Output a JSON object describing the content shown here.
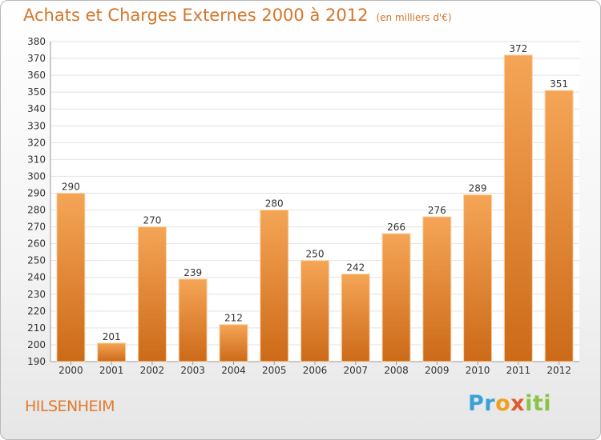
{
  "title": {
    "main": "Achats et Charges Externes 2000 à 2012",
    "unit": "(en milliers d'€)"
  },
  "commune": "HILSENHEIM",
  "logo": {
    "text": "Proxiti",
    "parts": [
      "Pr",
      "o",
      "x",
      "iti"
    ]
  },
  "colors": {
    "accent": "#d4762a",
    "bar_top": "#f5a556",
    "bar_bottom": "#cc6a18",
    "grid": "#e2e2e2"
  },
  "chart_data": {
    "type": "bar",
    "title": "Achats et Charges Externes 2000 à 2012",
    "subtitle": "(en milliers d'€)",
    "categories": [
      "2000",
      "2001",
      "2002",
      "2003",
      "2004",
      "2005",
      "2006",
      "2007",
      "2008",
      "2009",
      "2010",
      "2011",
      "2012"
    ],
    "values": [
      290,
      201,
      270,
      239,
      212,
      280,
      250,
      242,
      266,
      276,
      289,
      372,
      351
    ],
    "data_labels": [
      "290",
      "201",
      "270",
      "239",
      "212",
      "280",
      "250",
      "242",
      "266",
      "276",
      "289",
      "372",
      "351"
    ],
    "ylim": [
      190,
      380
    ],
    "yticks": [
      190,
      200,
      210,
      220,
      230,
      240,
      250,
      260,
      270,
      280,
      290,
      300,
      310,
      320,
      330,
      340,
      350,
      360,
      370,
      380
    ],
    "grid": true,
    "legend": "none"
  }
}
